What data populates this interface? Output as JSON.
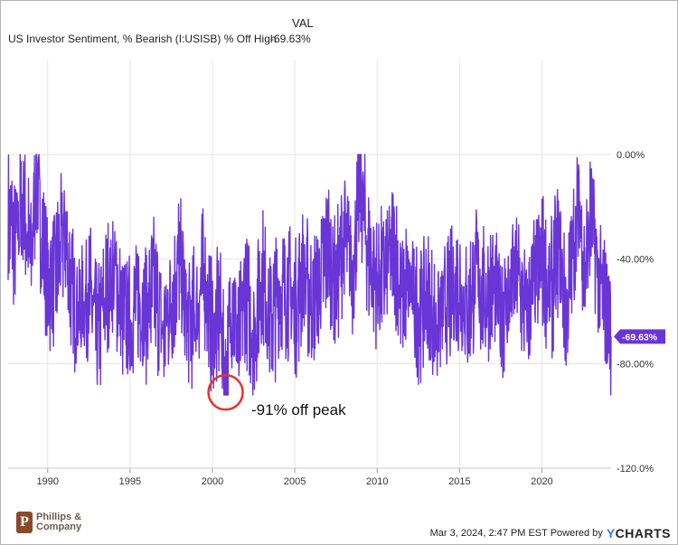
{
  "legend": {
    "column_header": "VAL",
    "series_name": "US Investor Sentiment, % Bearish (I:USISB) % Off High",
    "series_value": "-69.63%"
  },
  "annotation": {
    "text": "-91% off peak",
    "year": 2000.8,
    "value": -91
  },
  "footer": {
    "brand_line1": "Phillips &",
    "brand_line2": "Company",
    "brand_mark": "P",
    "timestamp": "Mar 3, 2024, 2:47 PM EST Powered by",
    "powered_brand_y": "Y",
    "powered_brand_rest": "CHARTS"
  },
  "colors": {
    "series": "#6a35d6",
    "annotation": "#e8322c",
    "grid": "#e6e6e6",
    "last_value_badge": "#6a35d6"
  },
  "chart_data": {
    "type": "line",
    "title": "US Investor Sentiment, % Bearish (I:USISB) % Off High",
    "xlabel": "",
    "ylabel": "",
    "xlim": [
      1987.6,
      2024.2
    ],
    "ylim": [
      -120,
      0
    ],
    "y_ticks": [
      0,
      -40,
      -80,
      -120
    ],
    "y_tick_labels": [
      "0.00%",
      "-40.00%",
      "-80.00%",
      "-120.0%"
    ],
    "x_ticks": [
      1990,
      1995,
      2000,
      2005,
      2010,
      2015,
      2020
    ],
    "x_tick_labels": [
      "1990",
      "1995",
      "2000",
      "2005",
      "2010",
      "2015",
      "2020"
    ],
    "last_value": -69.63,
    "last_value_label": "-69.63%",
    "series": [
      {
        "name": "US Investor Sentiment, % Bearish % Off High",
        "x": [
          1987.6,
          1988.0,
          1988.5,
          1989.0,
          1989.3,
          1989.6,
          1990.0,
          1990.5,
          1991.0,
          1991.5,
          1992.0,
          1992.5,
          1993.0,
          1993.5,
          1994.0,
          1994.5,
          1995.0,
          1995.5,
          1996.0,
          1996.5,
          1997.0,
          1997.5,
          1998.0,
          1998.5,
          1999.0,
          1999.5,
          2000.0,
          2000.5,
          2000.8,
          2001.2,
          2001.6,
          2002.0,
          2002.5,
          2003.0,
          2003.5,
          2004.0,
          2004.5,
          2005.0,
          2005.5,
          2006.0,
          2006.5,
          2007.0,
          2007.5,
          2008.0,
          2008.5,
          2009.0,
          2009.5,
          2010.0,
          2010.5,
          2011.0,
          2011.5,
          2012.0,
          2012.5,
          2013.0,
          2013.5,
          2014.0,
          2014.5,
          2015.0,
          2015.5,
          2016.0,
          2016.5,
          2017.0,
          2017.5,
          2018.0,
          2018.5,
          2019.0,
          2019.5,
          2020.0,
          2020.5,
          2021.0,
          2021.5,
          2022.0,
          2022.3,
          2022.6,
          2023.0,
          2023.5,
          2024.0,
          2024.2
        ],
        "values": [
          -25,
          -35,
          -20,
          -40,
          -5,
          -30,
          -50,
          -45,
          -30,
          -55,
          -60,
          -50,
          -70,
          -55,
          -45,
          -60,
          -65,
          -55,
          -60,
          -50,
          -70,
          -55,
          -40,
          -65,
          -60,
          -45,
          -70,
          -60,
          -91,
          -55,
          -75,
          -50,
          -70,
          -45,
          -65,
          -55,
          -50,
          -60,
          -45,
          -55,
          -50,
          -35,
          -50,
          -30,
          -45,
          -10,
          -40,
          -50,
          -45,
          -35,
          -55,
          -50,
          -60,
          -55,
          -65,
          -60,
          -55,
          -50,
          -60,
          -45,
          -55,
          -50,
          -60,
          -55,
          -45,
          -60,
          -50,
          -40,
          -55,
          -35,
          -60,
          -30,
          -20,
          -45,
          -25,
          -50,
          -60,
          -69.63
        ]
      }
    ]
  }
}
